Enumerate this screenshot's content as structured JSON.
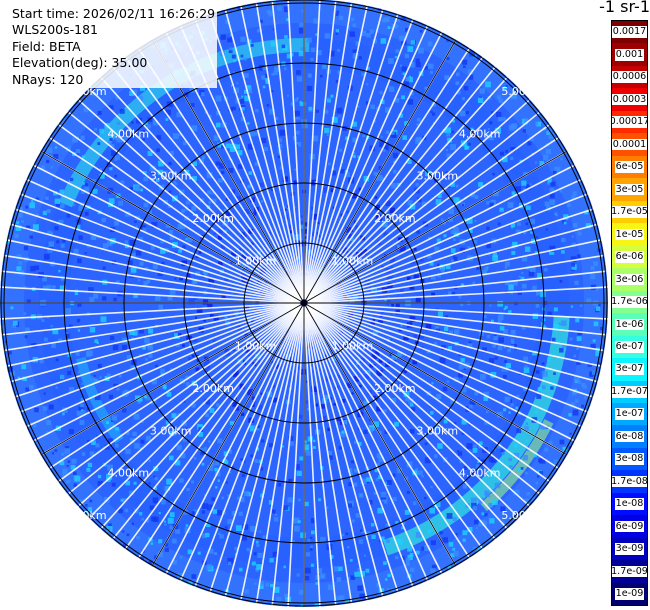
{
  "info": {
    "start_time": "Start time: 2026/02/11 16:26:29",
    "instrument": "WLS200s-181",
    "field": "Field: BETA",
    "elevation": "Elevation(deg): 35.00",
    "nrays": "NRays: 120"
  },
  "colorbar": {
    "title": "-1 sr-1",
    "labels": [
      "0.0017",
      "0.001",
      "0.0006",
      "0.0003",
      "0.00017",
      "0.0001",
      "6e-05",
      "3e-05",
      "1.7e-05",
      "1e-05",
      "6e-06",
      "3e-06",
      "1.7e-06",
      "1e-06",
      "6e-07",
      "3e-07",
      "1.7e-07",
      "1e-07",
      "6e-08",
      "3e-08",
      "1.7e-08",
      "1e-08",
      "6e-09",
      "3e-09",
      "1.7e-09",
      "1e-09"
    ],
    "colors": [
      "#7f0000",
      "#9d0000",
      "#c40000",
      "#ee0000",
      "#ff2a00",
      "#ff5200",
      "#ff7d00",
      "#ffa400",
      "#ffcd00",
      "#f7f516",
      "#d3ff3e",
      "#abff67",
      "#83ff8f",
      "#5cffb8",
      "#36ffe1",
      "#0cf4ff",
      "#00ccff",
      "#00a8ff",
      "#0080ff",
      "#0058ff",
      "#0034ff",
      "#000cff",
      "#0000e3",
      "#0000bd",
      "#000096",
      "#00006e"
    ]
  },
  "range_rings": {
    "labels": [
      "1.00km",
      "2.00km",
      "3.00km",
      "4.00km",
      "5.00km"
    ]
  }
}
